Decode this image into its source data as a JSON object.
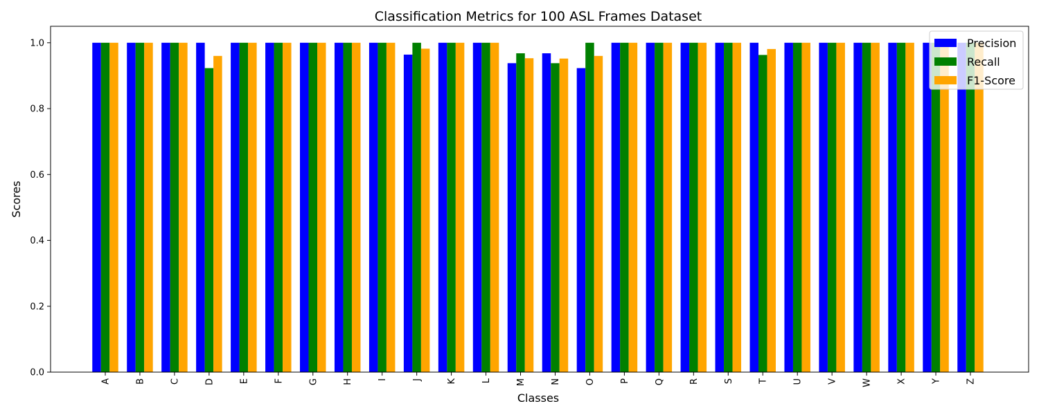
{
  "chart_data": {
    "type": "bar",
    "title": "Classification Metrics for 100 ASL Frames Dataset",
    "xlabel": "Classes",
    "ylabel": "Scores",
    "ylim": [
      0,
      1.05
    ],
    "yticks": [
      "0.0",
      "0.2",
      "0.4",
      "0.6",
      "0.8",
      "1.0"
    ],
    "grid": false,
    "legend_position": "top-right",
    "categories": [
      "A",
      "B",
      "C",
      "D",
      "E",
      "F",
      "G",
      "H",
      "I",
      "J",
      "K",
      "L",
      "M",
      "N",
      "O",
      "P",
      "Q",
      "R",
      "S",
      "T",
      "U",
      "V",
      "W",
      "X",
      "Y",
      "Z"
    ],
    "series": [
      {
        "name": "Precision",
        "color": "#0000ff",
        "values": [
          1.0,
          1.0,
          1.0,
          1.0,
          1.0,
          1.0,
          1.0,
          1.0,
          1.0,
          0.964,
          1.0,
          1.0,
          0.938,
          0.968,
          0.923,
          1.0,
          1.0,
          1.0,
          1.0,
          1.0,
          1.0,
          1.0,
          1.0,
          1.0,
          1.0,
          1.0
        ]
      },
      {
        "name": "Recall",
        "color": "#008000",
        "values": [
          1.0,
          1.0,
          1.0,
          0.923,
          1.0,
          1.0,
          1.0,
          1.0,
          1.0,
          1.0,
          1.0,
          1.0,
          0.968,
          0.938,
          1.0,
          1.0,
          1.0,
          1.0,
          1.0,
          0.963,
          1.0,
          1.0,
          1.0,
          1.0,
          1.0,
          1.0
        ]
      },
      {
        "name": "F1-Score",
        "color": "#ffa500",
        "values": [
          1.0,
          1.0,
          1.0,
          0.96,
          1.0,
          1.0,
          1.0,
          1.0,
          1.0,
          0.982,
          1.0,
          1.0,
          0.953,
          0.952,
          0.96,
          1.0,
          1.0,
          1.0,
          1.0,
          0.981,
          1.0,
          1.0,
          1.0,
          1.0,
          1.0,
          1.0
        ]
      }
    ]
  }
}
